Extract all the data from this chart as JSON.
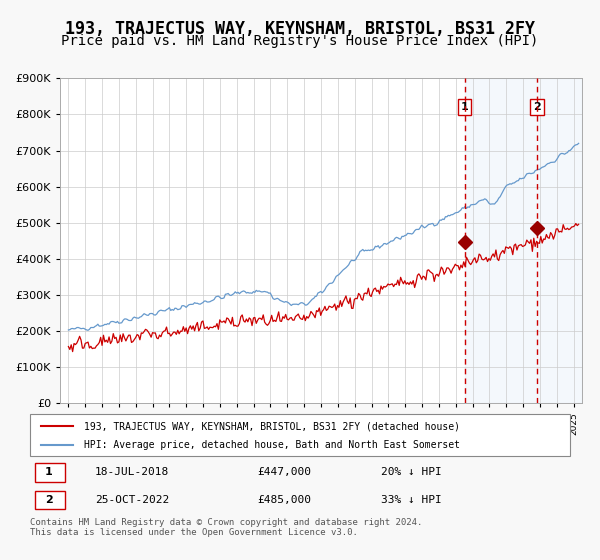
{
  "title": "193, TRAJECTUS WAY, KEYNSHAM, BRISTOL, BS31 2FY",
  "subtitle": "Price paid vs. HM Land Registry's House Price Index (HPI)",
  "title_fontsize": 12,
  "subtitle_fontsize": 10,
  "bg_color": "#f0f4fa",
  "plot_bg_color": "#ffffff",
  "red_line_color": "#cc0000",
  "blue_line_color": "#6699cc",
  "marker_color": "#990000",
  "dashed_line_color": "#cc0000",
  "purchase1_date_num": 2018.54,
  "purchase1_price": 447000,
  "purchase1_label": "1",
  "purchase2_date_num": 2022.82,
  "purchase2_price": 485000,
  "purchase2_label": "2",
  "legend_entry1": "193, TRAJECTUS WAY, KEYNSHAM, BRISTOL, BS31 2FY (detached house)",
  "legend_entry2": "HPI: Average price, detached house, Bath and North East Somerset",
  "ann1_date": "18-JUL-2018",
  "ann1_price": "£447,000",
  "ann1_hpi": "20% ↓ HPI",
  "ann2_date": "25-OCT-2022",
  "ann2_price": "£485,000",
  "ann2_hpi": "33% ↓ HPI",
  "footer": "Contains HM Land Registry data © Crown copyright and database right 2024.\nThis data is licensed under the Open Government Licence v3.0.",
  "ylim": [
    0,
    900000
  ],
  "xlim_start": 1994.5,
  "xlim_end": 2025.5
}
